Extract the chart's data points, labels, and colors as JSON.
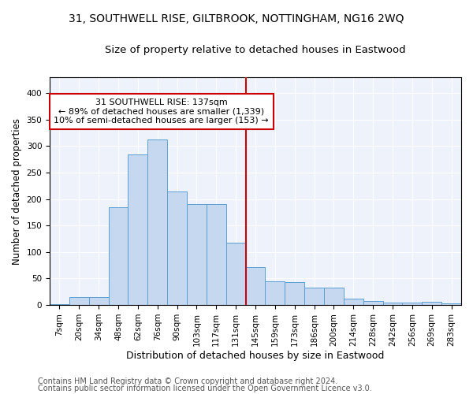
{
  "title1": "31, SOUTHWELL RISE, GILTBROOK, NOTTINGHAM, NG16 2WQ",
  "title2": "Size of property relative to detached houses in Eastwood",
  "xlabel": "Distribution of detached houses by size in Eastwood",
  "ylabel": "Number of detached properties",
  "categories": [
    "7sqm",
    "20sqm",
    "34sqm",
    "48sqm",
    "62sqm",
    "76sqm",
    "90sqm",
    "103sqm",
    "117sqm",
    "131sqm",
    "145sqm",
    "159sqm",
    "173sqm",
    "186sqm",
    "200sqm",
    "214sqm",
    "228sqm",
    "242sqm",
    "256sqm",
    "269sqm",
    "283sqm"
  ],
  "values": [
    2,
    15,
    15,
    185,
    285,
    312,
    215,
    190,
    190,
    117,
    72,
    45,
    43,
    33,
    33,
    12,
    7,
    5,
    5,
    6,
    3
  ],
  "bar_color": "#c5d8f0",
  "bar_edge_color": "#5a9fd4",
  "vline_color": "#cc0000",
  "annotation_text": "31 SOUTHWELL RISE: 137sqm\n← 89% of detached houses are smaller (1,339)\n10% of semi-detached houses are larger (153) →",
  "annotation_box_color": "#cc0000",
  "ylim": [
    0,
    430
  ],
  "vline_x_index": 10.0,
  "footer1": "Contains HM Land Registry data © Crown copyright and database right 2024.",
  "footer2": "Contains public sector information licensed under the Open Government Licence v3.0.",
  "background_color": "#eef2fb",
  "title1_fontsize": 10,
  "title2_fontsize": 9.5,
  "xlabel_fontsize": 9,
  "ylabel_fontsize": 8.5,
  "tick_fontsize": 7.5,
  "annotation_fontsize": 8,
  "footer_fontsize": 7
}
